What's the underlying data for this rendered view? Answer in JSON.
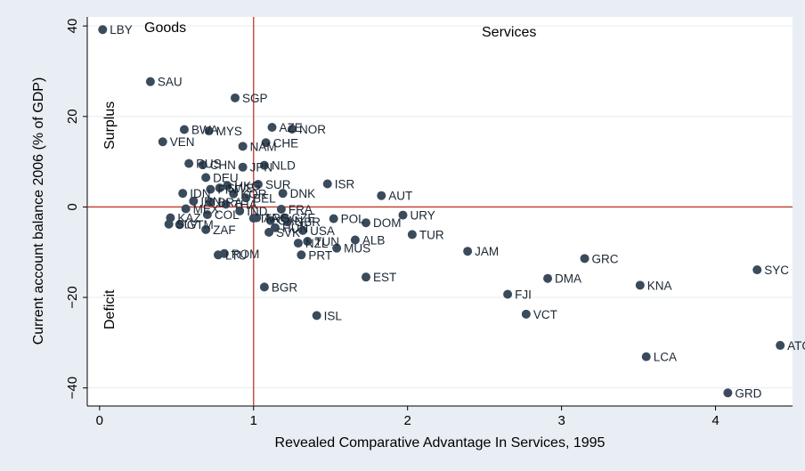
{
  "chart_data": {
    "type": "scatter",
    "title": "",
    "xlabel": "Revealed Comparative Advantage In Services, 1995",
    "ylabel": "Current account balance 2006 (% of GDP)",
    "xlim": [
      -0.08,
      4.5
    ],
    "ylim": [
      -44,
      42
    ],
    "xticks": [
      0,
      1,
      2,
      3,
      4
    ],
    "yticks": [
      40,
      20,
      0,
      -20,
      -40
    ],
    "yticks_labels": [
      "40",
      "20",
      "0",
      "−20",
      "−40"
    ],
    "reference_lines": {
      "x": 1,
      "y": 0,
      "color": "#c0392b"
    },
    "region_labels": {
      "top_left": "Goods",
      "top_right": "Services",
      "left_upper": "Surplus",
      "left_lower": "Deficit"
    },
    "grid": true,
    "marker_color": "#3a4b5c",
    "points": [
      {
        "label": "LBY",
        "x": 0.02,
        "y": 39.2
      },
      {
        "label": "SAU",
        "x": 0.33,
        "y": 27.7
      },
      {
        "label": "SGP",
        "x": 0.88,
        "y": 24.1
      },
      {
        "label": "AZE",
        "x": 1.12,
        "y": 17.6
      },
      {
        "label": "NOR",
        "x": 1.25,
        "y": 17.2
      },
      {
        "label": "BWA",
        "x": 0.55,
        "y": 17.1
      },
      {
        "label": "MYS",
        "x": 0.71,
        "y": 16.8
      },
      {
        "label": "VEN",
        "x": 0.41,
        "y": 14.4
      },
      {
        "label": "CHE",
        "x": 1.08,
        "y": 14.2
      },
      {
        "label": "NAM",
        "x": 0.93,
        "y": 13.4
      },
      {
        "label": "RUS",
        "x": 0.58,
        "y": 9.6
      },
      {
        "label": "CHN",
        "x": 0.67,
        "y": 9.3
      },
      {
        "label": "NLD",
        "x": 1.07,
        "y": 9.2
      },
      {
        "label": "JPN",
        "x": 0.93,
        "y": 8.8
      },
      {
        "label": "DEU",
        "x": 0.69,
        "y": 6.5
      },
      {
        "label": "ISR",
        "x": 1.48,
        "y": 5.1
      },
      {
        "label": "SUR",
        "x": 1.03,
        "y": 5.0
      },
      {
        "label": "HKG",
        "x": 0.83,
        "y": 4.7
      },
      {
        "label": "SWE",
        "x": 0.78,
        "y": 4.2
      },
      {
        "label": "FIN",
        "x": 0.72,
        "y": 3.9
      },
      {
        "label": "DNK",
        "x": 1.19,
        "y": 3.0
      },
      {
        "label": "IDN",
        "x": 0.54,
        "y": 3.0
      },
      {
        "label": "AUT",
        "x": 1.83,
        "y": 2.5
      },
      {
        "label": "KOR",
        "x": 0.87,
        "y": 2.9
      },
      {
        "label": "BEL",
        "x": 0.95,
        "y": 2.0
      },
      {
        "label": "IRN",
        "x": 0.61,
        "y": 1.3
      },
      {
        "label": "BRA",
        "x": 0.72,
        "y": 1.1
      },
      {
        "label": "THA",
        "x": 0.82,
        "y": 0.6
      },
      {
        "label": "MEX",
        "x": 0.56,
        "y": -0.4
      },
      {
        "label": "IND",
        "x": 0.91,
        "y": -0.9
      },
      {
        "label": "FRA",
        "x": 1.18,
        "y": -0.5
      },
      {
        "label": "URY",
        "x": 1.97,
        "y": -1.8
      },
      {
        "label": "COL",
        "x": 0.7,
        "y": -1.7
      },
      {
        "label": "KAZ",
        "x": 0.46,
        "y": -2.4
      },
      {
        "label": "ITA",
        "x": 1.0,
        "y": -2.5
      },
      {
        "label": "ARG",
        "x": 1.02,
        "y": -2.4
      },
      {
        "label": "CZE",
        "x": 1.2,
        "y": -2.4
      },
      {
        "label": "POL",
        "x": 1.52,
        "y": -2.6
      },
      {
        "label": "DOM",
        "x": 1.73,
        "y": -3.5
      },
      {
        "label": "GBR",
        "x": 1.22,
        "y": -3.3
      },
      {
        "label": "CAN",
        "x": 1.11,
        "y": -3.0
      },
      {
        "label": "SLV",
        "x": 0.45,
        "y": -3.8
      },
      {
        "label": "GTM",
        "x": 0.52,
        "y": -3.9
      },
      {
        "label": "HUN",
        "x": 1.14,
        "y": -4.6
      },
      {
        "label": "ZAF",
        "x": 0.69,
        "y": -5.0
      },
      {
        "label": "USA",
        "x": 1.32,
        "y": -5.2
      },
      {
        "label": "SVK",
        "x": 1.1,
        "y": -5.6
      },
      {
        "label": "TUR",
        "x": 2.03,
        "y": -6.1
      },
      {
        "label": "ALB",
        "x": 1.66,
        "y": -7.3
      },
      {
        "label": "TUN",
        "x": 1.35,
        "y": -7.6
      },
      {
        "label": "NZL",
        "x": 1.29,
        "y": -8.0
      },
      {
        "label": "MUS",
        "x": 1.54,
        "y": -9.1
      },
      {
        "label": "ROM",
        "x": 0.81,
        "y": -10.3
      },
      {
        "label": "LTU",
        "x": 0.77,
        "y": -10.6
      },
      {
        "label": "PRT",
        "x": 1.31,
        "y": -10.6
      },
      {
        "label": "JAM",
        "x": 2.39,
        "y": -9.8
      },
      {
        "label": "GRC",
        "x": 3.15,
        "y": -11.4
      },
      {
        "label": "SYC",
        "x": 4.27,
        "y": -13.9
      },
      {
        "label": "EST",
        "x": 1.73,
        "y": -15.5
      },
      {
        "label": "DMA",
        "x": 2.91,
        "y": -15.8
      },
      {
        "label": "KNA",
        "x": 3.51,
        "y": -17.3
      },
      {
        "label": "BGR",
        "x": 1.07,
        "y": -17.7
      },
      {
        "label": "FJI",
        "x": 2.65,
        "y": -19.3
      },
      {
        "label": "VCT",
        "x": 2.77,
        "y": -23.7
      },
      {
        "label": "ISL",
        "x": 1.41,
        "y": -24.0
      },
      {
        "label": "LCA",
        "x": 3.55,
        "y": -33.1
      },
      {
        "label": "ATG",
        "x": 4.42,
        "y": -30.6
      },
      {
        "label": "GRD",
        "x": 4.08,
        "y": -41.1
      }
    ]
  }
}
